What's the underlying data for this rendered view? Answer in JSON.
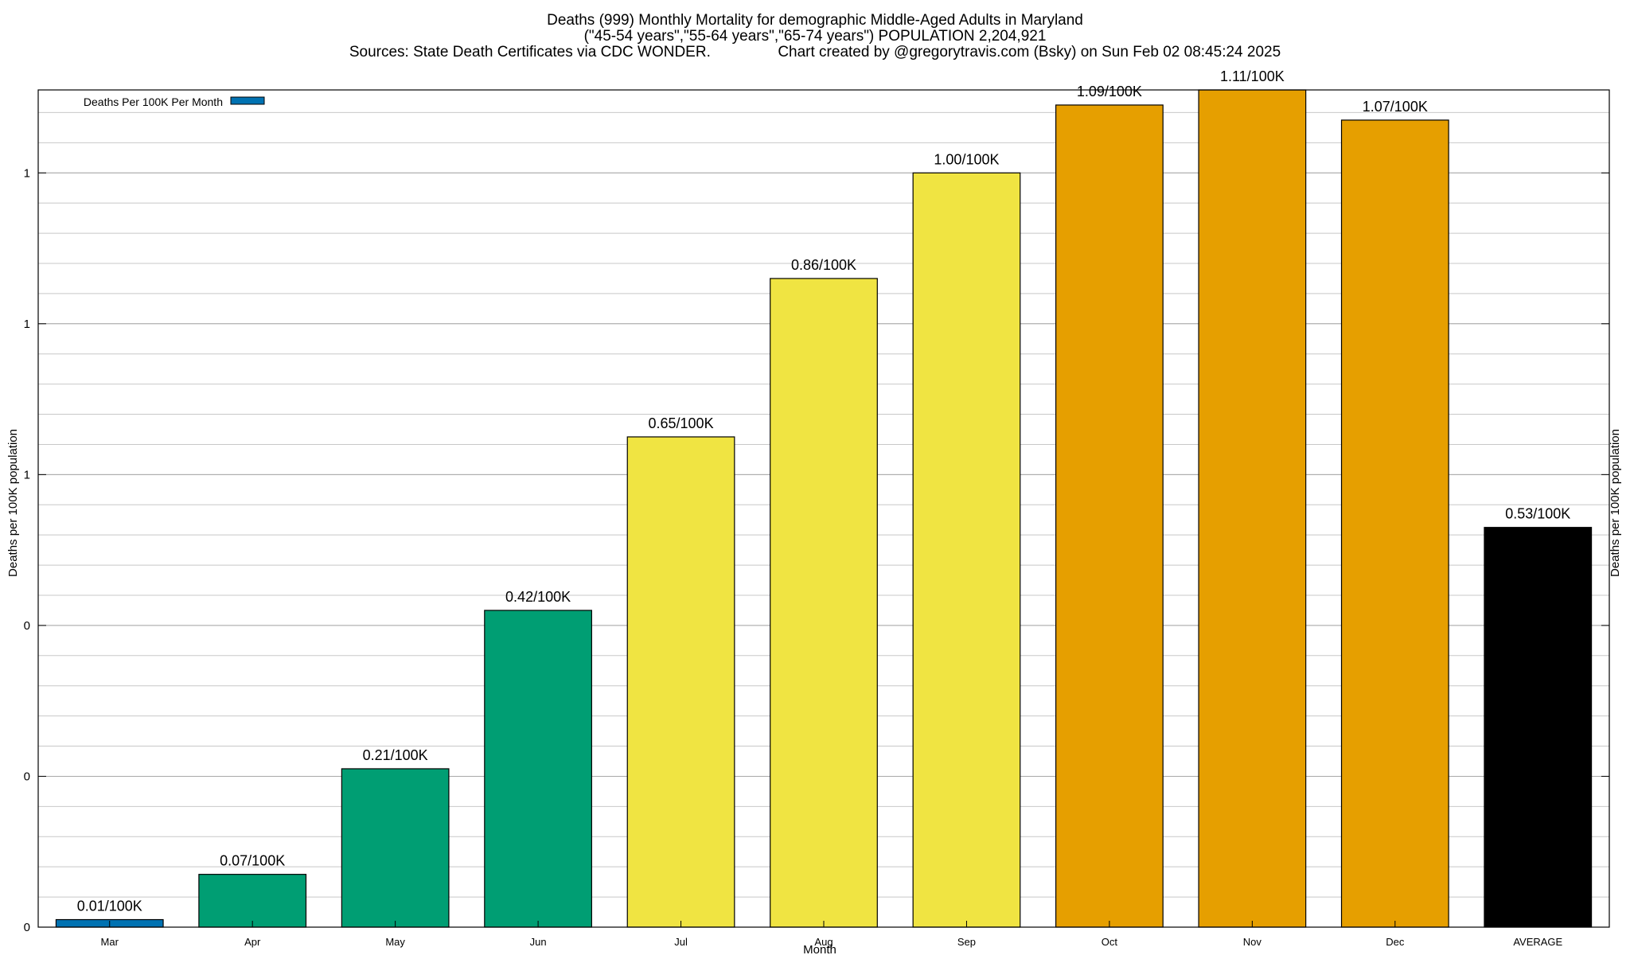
{
  "chart_data": {
    "type": "bar",
    "title_lines": [
      "Deaths (999) Monthly Mortality for demographic Middle-Aged Adults in Maryland",
      "(\"45-54 years\",\"55-64 years\",\"65-74 years\") POPULATION 2,204,921",
      "Sources: State Death Certificates via CDC WONDER.                Chart created by @gregorytravis.com (Bsky) on Sun Feb 02 08:45:24 2025"
    ],
    "xlabel": "Month",
    "ylabel": "Deaths per 100K population",
    "y2label": "Deaths per 100K population",
    "legend": {
      "label": "Deaths Per 100K Per Month",
      "color": "#0072b2",
      "placement": "top-left"
    },
    "categories": [
      "Mar",
      "Apr",
      "May",
      "Jun",
      "Jul",
      "Aug",
      "Sep",
      "Oct",
      "Nov",
      "Dec",
      "AVERAGE"
    ],
    "values": [
      0.01,
      0.07,
      0.21,
      0.42,
      0.65,
      0.86,
      1.0,
      1.09,
      1.11,
      1.07,
      0.53
    ],
    "data_labels": [
      "0.01/100K",
      "0.07/100K",
      "0.21/100K",
      "0.42/100K",
      "0.65/100K",
      "0.86/100K",
      "1.00/100K",
      "1.09/100K",
      "1.11/100K",
      "1.07/100K",
      "0.53/100K"
    ],
    "colors": [
      "#0072b2",
      "#009e73",
      "#009e73",
      "#009e73",
      "#f0e442",
      "#f0e442",
      "#f0e442",
      "#e69f00",
      "#e69f00",
      "#e69f00",
      "#000000"
    ],
    "ylim": [
      0,
      1.11
    ],
    "y_ticks": [
      {
        "value": 0,
        "label": "0"
      },
      {
        "value": 0.2,
        "label": "0"
      },
      {
        "value": 0.4,
        "label": "0"
      },
      {
        "value": 0.6,
        "label": "1"
      },
      {
        "value": 0.8,
        "label": "1"
      },
      {
        "value": 1.0,
        "label": "1"
      }
    ],
    "minor_grid_step": 0.04,
    "grid": true
  }
}
